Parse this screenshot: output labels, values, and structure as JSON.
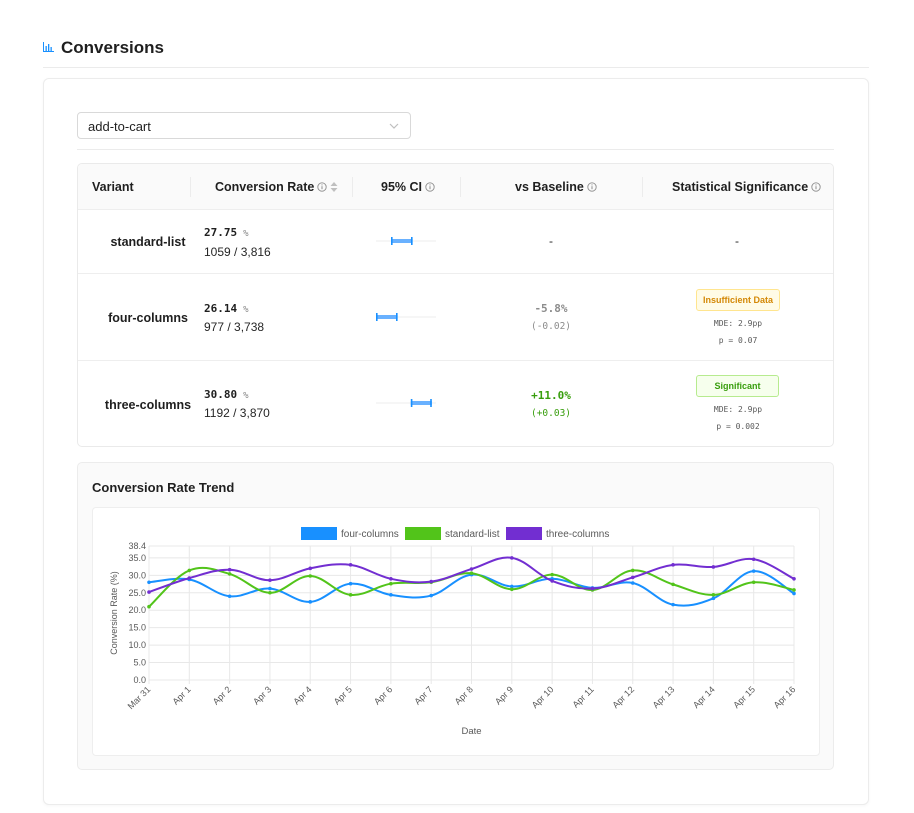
{
  "header": {
    "title": "Conversions",
    "icon": "bar-chart-icon"
  },
  "metric_select": {
    "value": "add-to-cart",
    "icon": "chevron-down-icon"
  },
  "table": {
    "columns": [
      "Variant",
      "Conversion Rate",
      "95% CI",
      "vs Baseline",
      "Statistical Significance"
    ],
    "rows": [
      {
        "variant": "standard-list",
        "rate": "27.75",
        "unit": "%",
        "count": "1059 / 3,816",
        "ci": [
          0.25,
          0.61
        ],
        "vs_baseline": "-",
        "significance": "-"
      },
      {
        "variant": "four-columns",
        "rate": "26.14",
        "unit": "%",
        "count": "977 / 3,738",
        "ci": [
          0.0,
          0.36
        ],
        "vs_baseline": "-5.8%",
        "vs_baseline_abs": "(-0.02)",
        "badge": "Insufficient Data",
        "mde": "MDE: 2.9pp",
        "p": "p = 0.07"
      },
      {
        "variant": "three-columns",
        "rate": "30.80",
        "unit": "%",
        "count": "1192 / 3,870",
        "ci": [
          0.58,
          0.93
        ],
        "vs_baseline": "+11.0%",
        "vs_baseline_abs": "(+0.03)",
        "badge": "Significant",
        "mde": "MDE: 2.9pp",
        "p": "p = 0.002"
      }
    ]
  },
  "trend": {
    "title": "Conversion Rate Trend"
  },
  "colors": {
    "four-columns": "#1890ff",
    "standard-list": "#52c41a",
    "three-columns": "#722ed1",
    "neutral": "#8c8c8c",
    "positive": "#389e0d"
  },
  "chart_data": {
    "type": "line",
    "xlabel": "Date",
    "ylabel": "Conversion Rate (%)",
    "ylim": [
      0,
      38.4
    ],
    "yticks": [
      "0.0",
      "5.0",
      "10.0",
      "15.0",
      "20.0",
      "25.0",
      "30.0",
      "35.0",
      "38.4"
    ],
    "grid": true,
    "legend": "top-center",
    "categories": [
      "Mar 31",
      "Apr 1",
      "Apr 2",
      "Apr 3",
      "Apr 4",
      "Apr 5",
      "Apr 6",
      "Apr 7",
      "Apr 8",
      "Apr 9",
      "Apr 10",
      "Apr 11",
      "Apr 12",
      "Apr 13",
      "Apr 14",
      "Apr 15",
      "Apr 16"
    ],
    "series": [
      {
        "name": "four-columns",
        "values": [
          28.0,
          28.8,
          24.0,
          26.2,
          22.4,
          27.6,
          24.4,
          24.2,
          30.2,
          26.8,
          29.0,
          26.4,
          27.8,
          21.6,
          23.4,
          31.2,
          24.8
        ]
      },
      {
        "name": "standard-list",
        "values": [
          21.0,
          31.4,
          30.4,
          25.0,
          29.8,
          24.4,
          27.6,
          28.0,
          30.6,
          26.0,
          30.2,
          25.8,
          31.4,
          27.4,
          24.4,
          28.0,
          25.8
        ]
      },
      {
        "name": "three-columns",
        "values": [
          25.2,
          29.2,
          31.6,
          28.6,
          32.0,
          33.0,
          29.0,
          28.2,
          31.8,
          35.0,
          28.4,
          26.2,
          29.4,
          33.0,
          32.4,
          34.6,
          29.0
        ]
      }
    ]
  }
}
